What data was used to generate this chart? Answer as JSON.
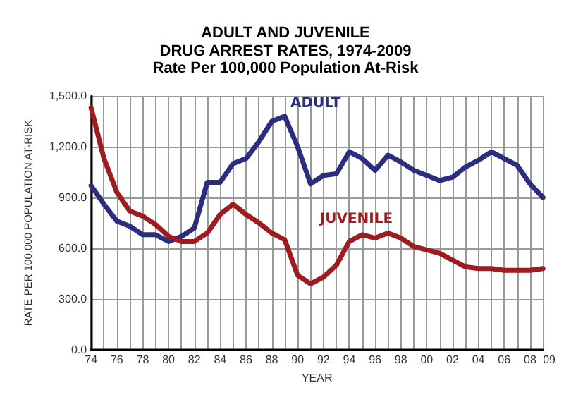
{
  "chart_data": {
    "type": "line",
    "title": "ADULT AND JUVENILE\nDRUG ARREST RATES, 1974-2009",
    "subtitle": "Rate Per 100,000 Population At-Risk",
    "xlabel": "YEAR",
    "ylabel": "RATE PER 100,000 POPULATION AT-RISK",
    "x": [
      1974,
      1975,
      1976,
      1977,
      1978,
      1979,
      1980,
      1981,
      1982,
      1983,
      1984,
      1985,
      1986,
      1987,
      1988,
      1989,
      1990,
      1991,
      1992,
      1993,
      1994,
      1995,
      1996,
      1997,
      1998,
      1999,
      2000,
      2001,
      2002,
      2003,
      2004,
      2005,
      2006,
      2007,
      2008,
      2009
    ],
    "series": [
      {
        "name": "ADULT",
        "color": "#2b2e7e",
        "values": [
          970,
          860,
          760,
          730,
          680,
          680,
          640,
          670,
          720,
          990,
          990,
          1100,
          1130,
          1230,
          1350,
          1380,
          1200,
          980,
          1030,
          1040,
          1170,
          1130,
          1060,
          1150,
          1110,
          1060,
          1030,
          1000,
          1020,
          1080,
          1120,
          1170,
          1130,
          1090,
          980,
          900
        ]
      },
      {
        "name": "JUVENILE",
        "color": "#9e1b20",
        "values": [
          1430,
          1130,
          930,
          820,
          790,
          740,
          670,
          640,
          640,
          690,
          800,
          860,
          800,
          750,
          690,
          650,
          440,
          390,
          430,
          500,
          640,
          680,
          660,
          690,
          660,
          610,
          590,
          570,
          530,
          490,
          480,
          480,
          470,
          470,
          470,
          480
        ]
      }
    ],
    "xlim": [
      1974,
      2009
    ],
    "xticks": [
      {
        "value": 1974,
        "label": "74"
      },
      {
        "value": 1975,
        "label": null
      },
      {
        "value": 1976,
        "label": "76"
      },
      {
        "value": 1977,
        "label": null
      },
      {
        "value": 1978,
        "label": "78"
      },
      {
        "value": 1979,
        "label": null
      },
      {
        "value": 1980,
        "label": "80"
      },
      {
        "value": 1981,
        "label": null
      },
      {
        "value": 1982,
        "label": "82"
      },
      {
        "value": 1983,
        "label": null
      },
      {
        "value": 1984,
        "label": "84"
      },
      {
        "value": 1985,
        "label": null
      },
      {
        "value": 1986,
        "label": "86"
      },
      {
        "value": 1987,
        "label": null
      },
      {
        "value": 1988,
        "label": "88"
      },
      {
        "value": 1989,
        "label": null
      },
      {
        "value": 1990,
        "label": "90"
      },
      {
        "value": 1991,
        "label": null
      },
      {
        "value": 1992,
        "label": "92"
      },
      {
        "value": 1993,
        "label": null
      },
      {
        "value": 1994,
        "label": "94"
      },
      {
        "value": 1995,
        "label": null
      },
      {
        "value": 1996,
        "label": "96"
      },
      {
        "value": 1997,
        "label": null
      },
      {
        "value": 1998,
        "label": "98"
      },
      {
        "value": 1999,
        "label": null
      },
      {
        "value": 2000,
        "label": "00"
      },
      {
        "value": 2001,
        "label": null
      },
      {
        "value": 2002,
        "label": "02"
      },
      {
        "value": 2003,
        "label": null
      },
      {
        "value": 2004,
        "label": "04"
      },
      {
        "value": 2005,
        "label": null
      },
      {
        "value": 2006,
        "label": "06"
      },
      {
        "value": 2007,
        "label": null
      },
      {
        "value": 2008,
        "label": "08"
      },
      {
        "value": 2009,
        "label": "09"
      }
    ],
    "ylim": [
      0,
      1500
    ],
    "yticks": [
      {
        "value": 0,
        "label": "0.0"
      },
      {
        "value": 300,
        "label": "300.0"
      },
      {
        "value": 600,
        "label": "600.0"
      },
      {
        "value": 900,
        "label": "900.0"
      },
      {
        "value": 1200,
        "label": "1,200.0"
      },
      {
        "value": 1500,
        "label": "1,500.0"
      }
    ],
    "grid": true,
    "legend": false,
    "marker": "none",
    "line_style": "solid"
  }
}
